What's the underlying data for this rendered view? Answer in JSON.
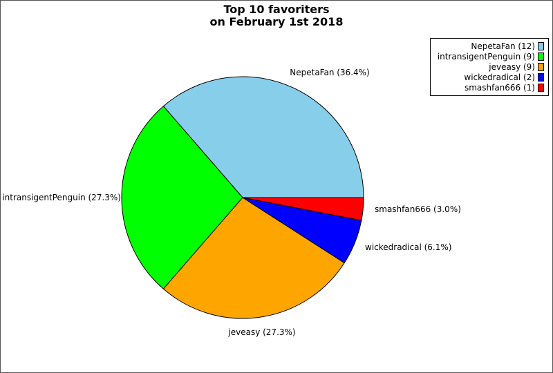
{
  "chart_data": {
    "type": "pie",
    "title": "Top 10 favoriters\non February 1st 2018",
    "title_lines": [
      "Top 10 favoriters",
      "on February 1st 2018"
    ],
    "slices": [
      {
        "name": "NepetaFan",
        "count": 12,
        "percent": 36.4,
        "color": "#87ceeb",
        "label": "NepetaFan (36.4%)",
        "legend": "NepetaFan (12)"
      },
      {
        "name": "intransigentPenguin",
        "count": 9,
        "percent": 27.3,
        "color": "#00ff00",
        "label": "intransigentPenguin (27.3%)",
        "legend": "intransigentPenguin (9)"
      },
      {
        "name": "jeveasy",
        "count": 9,
        "percent": 27.3,
        "color": "#ffa500",
        "label": "jeveasy (27.3%)",
        "legend": "jeveasy (9)"
      },
      {
        "name": "wickedradical",
        "count": 2,
        "percent": 6.1,
        "color": "#0000ff",
        "label": "wickedradical (6.1%)",
        "legend": "wickedradical (2)"
      },
      {
        "name": "smashfan666",
        "count": 1,
        "percent": 3.0,
        "color": "#ff0000",
        "label": "smashfan666 (3.0%)",
        "legend": "smashfan666 (1)"
      }
    ],
    "legend_position": "top-right",
    "start_angle": "3 o'clock",
    "direction": "counterclockwise"
  }
}
